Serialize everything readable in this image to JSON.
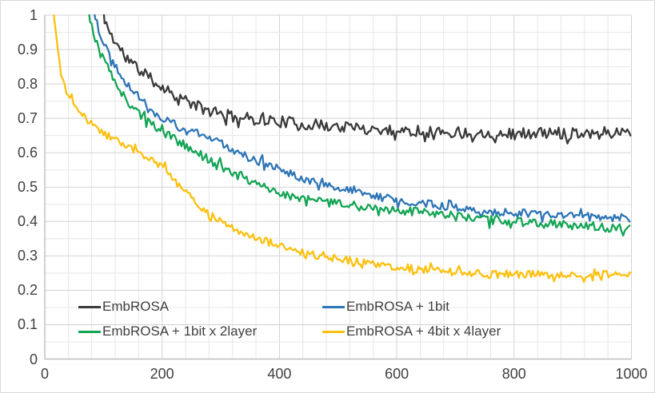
{
  "chart": {
    "background": "#ffffff",
    "axis_color": "#bfbfbf",
    "grid_minor_color": "#e7e7e7",
    "grid_major_color": "#d2d2d2",
    "label_color": "#404040",
    "legend_text_color": "#3f3f3f"
  },
  "chart_data": {
    "type": "line",
    "title": "",
    "xlabel": "",
    "ylabel": "",
    "xlim": [
      0,
      1000
    ],
    "ylim": [
      0,
      1
    ],
    "grid": {
      "x_minor": 40,
      "x_major": 200,
      "y_minor": 0.05,
      "y_major": 0.1
    },
    "xticks": [
      {
        "value": 0,
        "label": "0"
      },
      {
        "value": 200,
        "label": "200"
      },
      {
        "value": 400,
        "label": "400"
      },
      {
        "value": 600,
        "label": "600"
      },
      {
        "value": 800,
        "label": "800"
      },
      {
        "value": 1000,
        "label": "1000"
      }
    ],
    "yticks": [
      {
        "value": 0,
        "label": "0"
      },
      {
        "value": 0.1,
        "label": "0.1"
      },
      {
        "value": 0.2,
        "label": "0.2"
      },
      {
        "value": 0.3,
        "label": "0.3"
      },
      {
        "value": 0.4,
        "label": "0.4"
      },
      {
        "value": 0.5,
        "label": "0.5"
      },
      {
        "value": 0.6,
        "label": "0.6"
      },
      {
        "value": 0.7,
        "label": "0.7"
      },
      {
        "value": 0.8,
        "label": "0.8"
      },
      {
        "value": 0.9,
        "label": "0.9"
      },
      {
        "value": 1,
        "label": "1"
      }
    ],
    "legend_position": "inside-bottom-left",
    "series": [
      {
        "name": "EmbROSA",
        "color": "#3a3a3a",
        "seed": 11,
        "noise": 0.017,
        "anchors": [
          [
            93,
            1.22
          ],
          [
            100,
            1.0
          ],
          [
            110,
            0.952
          ],
          [
            120,
            0.922
          ],
          [
            130,
            0.898
          ],
          [
            145,
            0.866
          ],
          [
            160,
            0.843
          ],
          [
            180,
            0.815
          ],
          [
            200,
            0.792
          ],
          [
            225,
            0.766
          ],
          [
            250,
            0.743
          ],
          [
            275,
            0.723
          ],
          [
            300,
            0.712
          ],
          [
            325,
            0.704
          ],
          [
            350,
            0.699
          ],
          [
            400,
            0.691
          ],
          [
            450,
            0.682
          ],
          [
            500,
            0.676
          ],
          [
            550,
            0.67
          ],
          [
            600,
            0.665
          ],
          [
            650,
            0.662
          ],
          [
            700,
            0.659
          ],
          [
            750,
            0.657
          ],
          [
            800,
            0.655
          ],
          [
            850,
            0.657
          ],
          [
            900,
            0.659
          ],
          [
            950,
            0.659
          ],
          [
            1000,
            0.66
          ]
        ]
      },
      {
        "name": "EmbROSA + 1bit",
        "color": "#2e75b6",
        "seed": 22,
        "noise": 0.012,
        "anchors": [
          [
            77,
            1.22
          ],
          [
            84,
            1.0
          ],
          [
            95,
            0.943
          ],
          [
            105,
            0.903
          ],
          [
            120,
            0.853
          ],
          [
            140,
            0.803
          ],
          [
            160,
            0.763
          ],
          [
            180,
            0.728
          ],
          [
            200,
            0.701
          ],
          [
            225,
            0.678
          ],
          [
            250,
            0.659
          ],
          [
            275,
            0.645
          ],
          [
            300,
            0.628
          ],
          [
            325,
            0.606
          ],
          [
            350,
            0.587
          ],
          [
            375,
            0.568
          ],
          [
            400,
            0.552
          ],
          [
            430,
            0.533
          ],
          [
            460,
            0.515
          ],
          [
            500,
            0.496
          ],
          [
            540,
            0.481
          ],
          [
            580,
            0.468
          ],
          [
            620,
            0.458
          ],
          [
            660,
            0.449
          ],
          [
            700,
            0.442
          ],
          [
            740,
            0.432
          ],
          [
            780,
            0.427
          ],
          [
            820,
            0.423
          ],
          [
            860,
            0.419
          ],
          [
            900,
            0.416
          ],
          [
            950,
            0.412
          ],
          [
            1000,
            0.409
          ]
        ]
      },
      {
        "name": "EmbROSA + 1bit x 2layer",
        "color": "#13a455",
        "seed": 33,
        "noise": 0.013,
        "anchors": [
          [
            68,
            1.22
          ],
          [
            75,
            1.0
          ],
          [
            85,
            0.935
          ],
          [
            95,
            0.888
          ],
          [
            105,
            0.858
          ],
          [
            120,
            0.8
          ],
          [
            140,
            0.752
          ],
          [
            160,
            0.715
          ],
          [
            180,
            0.687
          ],
          [
            200,
            0.663
          ],
          [
            225,
            0.635
          ],
          [
            250,
            0.609
          ],
          [
            275,
            0.585
          ],
          [
            300,
            0.56
          ],
          [
            325,
            0.538
          ],
          [
            350,
            0.518
          ],
          [
            375,
            0.5
          ],
          [
            400,
            0.483
          ],
          [
            430,
            0.469
          ],
          [
            460,
            0.46
          ],
          [
            500,
            0.451
          ],
          [
            540,
            0.443
          ],
          [
            580,
            0.436
          ],
          [
            620,
            0.429
          ],
          [
            660,
            0.422
          ],
          [
            700,
            0.414
          ],
          [
            740,
            0.406
          ],
          [
            780,
            0.401
          ],
          [
            820,
            0.397
          ],
          [
            860,
            0.393
          ],
          [
            900,
            0.389
          ],
          [
            950,
            0.384
          ],
          [
            1000,
            0.378
          ]
        ]
      },
      {
        "name": "EmbROSA + 4bit x 4layer",
        "color": "#fdc00e",
        "seed": 44,
        "noise": 0.011,
        "anchors": [
          [
            13,
            1.25
          ],
          [
            16,
            1.0
          ],
          [
            20,
            0.93
          ],
          [
            25,
            0.865
          ],
          [
            30,
            0.81
          ],
          [
            35,
            0.778
          ],
          [
            42,
            0.762
          ],
          [
            50,
            0.742
          ],
          [
            58,
            0.724
          ],
          [
            68,
            0.705
          ],
          [
            80,
            0.683
          ],
          [
            92,
            0.666
          ],
          [
            105,
            0.651
          ],
          [
            120,
            0.637
          ],
          [
            136,
            0.624
          ],
          [
            152,
            0.608
          ],
          [
            170,
            0.59
          ],
          [
            188,
            0.573
          ],
          [
            205,
            0.552
          ],
          [
            215,
            0.532
          ],
          [
            225,
            0.512
          ],
          [
            235,
            0.494
          ],
          [
            245,
            0.477
          ],
          [
            265,
            0.445
          ],
          [
            285,
            0.415
          ],
          [
            305,
            0.392
          ],
          [
            325,
            0.376
          ],
          [
            345,
            0.363
          ],
          [
            365,
            0.351
          ],
          [
            387,
            0.338
          ],
          [
            410,
            0.322
          ],
          [
            435,
            0.31
          ],
          [
            460,
            0.302
          ],
          [
            480,
            0.297
          ],
          [
            510,
            0.289
          ],
          [
            546,
            0.281
          ],
          [
            580,
            0.272
          ],
          [
            610,
            0.266
          ],
          [
            640,
            0.261
          ],
          [
            670,
            0.257
          ],
          [
            700,
            0.253
          ],
          [
            730,
            0.25
          ],
          [
            760,
            0.248
          ],
          [
            800,
            0.247
          ],
          [
            850,
            0.246
          ],
          [
            900,
            0.244
          ],
          [
            950,
            0.246
          ],
          [
            1000,
            0.245
          ]
        ]
      }
    ]
  }
}
